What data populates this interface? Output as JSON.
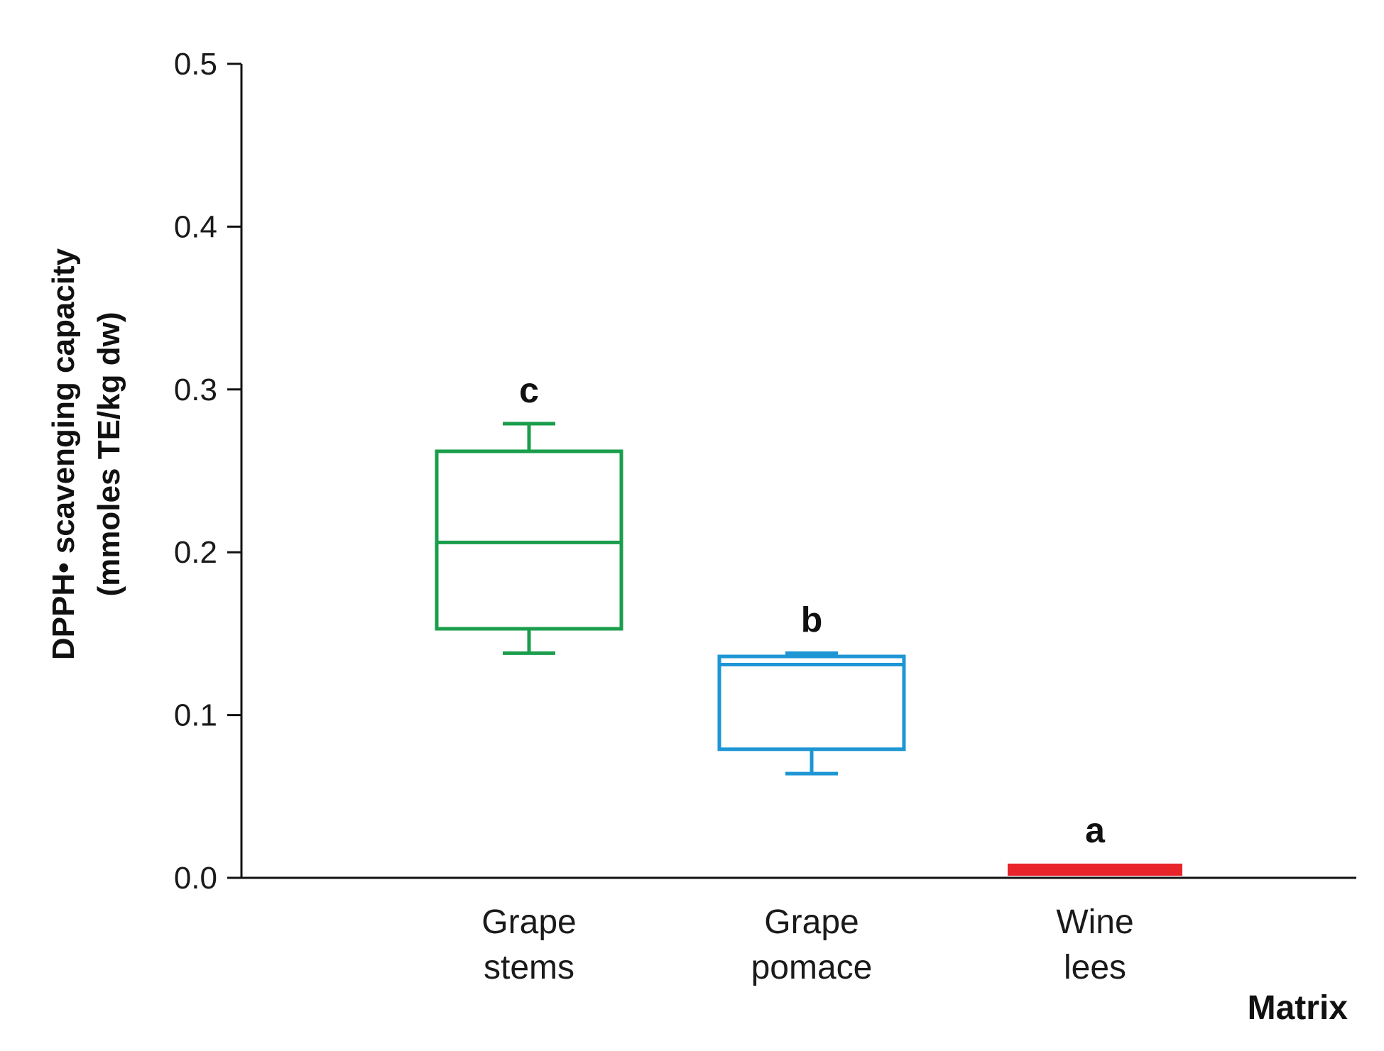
{
  "chart_data": {
    "type": "box",
    "title": "",
    "xlabel": "Matrix",
    "ylabel_line1": "DPPH• scavenging capacity",
    "ylabel_line2": "(mmoles TE/kg dw)",
    "ylim": [
      0,
      0.5
    ],
    "yticks": [
      "0.0",
      "0.1",
      "0.2",
      "0.3",
      "0.4",
      "0.5"
    ],
    "grid": false,
    "categories": [
      {
        "line1": "Grape",
        "line2": "stems"
      },
      {
        "line1": "Grape",
        "line2": "pomace"
      },
      {
        "line1": "Wine",
        "line2": "lees"
      }
    ],
    "boxes": [
      {
        "min": 0.138,
        "q1": 0.153,
        "median": 0.206,
        "q3": 0.262,
        "max": 0.279,
        "color": "#1a9e4b",
        "sig": "c"
      },
      {
        "min": 0.064,
        "q1": 0.079,
        "median": 0.131,
        "q3": 0.136,
        "max": 0.138,
        "color": "#1e96d4",
        "sig": "b"
      },
      {
        "min": 0.003,
        "q1": 0.003,
        "median": 0.005,
        "q3": 0.007,
        "max": 0.007,
        "color": "#e8232a",
        "sig": "a"
      }
    ]
  }
}
